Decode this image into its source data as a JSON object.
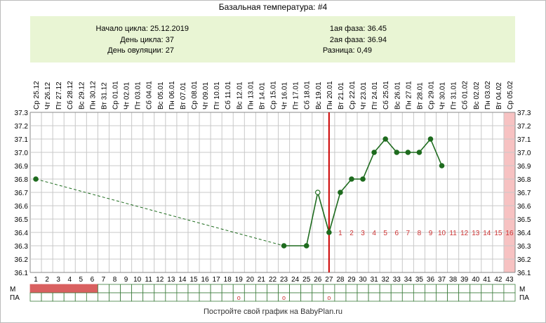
{
  "title": "Базальная температура: #4",
  "info": {
    "cycle_start": "Начало цикла: 25.12.2019",
    "cycle_day": "День цикла: 37",
    "ovulation_day": "День овуляции: 27",
    "phase1": "1ая фаза: 36.45",
    "phase2": "2ая фаза: 36.94",
    "difference": "Разница: 0,49"
  },
  "footer": "Постройте свой график на BabyPlan.ru",
  "colors": {
    "line": "#1e6b1e",
    "ovulation_line": "#cc0000",
    "menses_fill": "#d96060",
    "highlight_column": "#f7c2c2",
    "info_bg": "#e9f5d4",
    "phase_number": "#cc3333",
    "grid": "#c8c8c8"
  },
  "chart_data": {
    "type": "line",
    "title": "Базальная температура: #4",
    "ylim": [
      36.1,
      37.3
    ],
    "y_ticks": [
      "37.3",
      "37.2",
      "37.1",
      "37.0",
      "36.9",
      "36.8",
      "36.7",
      "36.6",
      "36.5",
      "36.4",
      "36.3",
      "36.2",
      "36.1"
    ],
    "dates": [
      "Ср 25.12",
      "Чт 26.12",
      "Пт 27.12",
      "Сб 28.12",
      "Вс 29.12",
      "Пн 30.12",
      "Вт 31.12",
      "Ср 01.01",
      "Чт 02.01",
      "Пт 03.01",
      "Сб 04.01",
      "Вс 05.01",
      "Пн 06.01",
      "Вт 07.01",
      "Ср 08.01",
      "Чт 09.01",
      "Пт 10.01",
      "Сб 11.01",
      "Вс 12.01",
      "Пн 13.01",
      "Вт 14.01",
      "Ср 15.01",
      "Чт 16.01",
      "Пт 17.01",
      "Сб 18.01",
      "Вс 19.01",
      "Пн 20.01",
      "Вт 21.01",
      "Ср 22.01",
      "Чт 23.01",
      "Пт 24.01",
      "Сб 25.01",
      "Вс 26.01",
      "Пн 27.01",
      "Вт 28.01",
      "Ср 29.01",
      "Чт 30.01",
      "Пт 31.01",
      "Сб 01.02",
      "Вс 02.02",
      "Пн 03.02",
      "Вт 04.02",
      "Ср 05.02"
    ],
    "days": [
      "1",
      "2",
      "3",
      "4",
      "5",
      "6",
      "7",
      "8",
      "9",
      "10",
      "11",
      "12",
      "13",
      "14",
      "15",
      "16",
      "17",
      "18",
      "19",
      "20",
      "21",
      "22",
      "23",
      "24",
      "25",
      "26",
      "27",
      "28",
      "29",
      "30",
      "31",
      "32",
      "33",
      "34",
      "35",
      "36",
      "37",
      "38",
      "39",
      "40",
      "41",
      "42",
      "43"
    ],
    "points": [
      {
        "day": 1,
        "temp": 36.8
      },
      {
        "day": 23,
        "temp": 36.3
      },
      {
        "day": 25,
        "temp": 36.3
      },
      {
        "day": 26,
        "temp": 36.7,
        "hollow": true
      },
      {
        "day": 27,
        "temp": 36.4
      },
      {
        "day": 28,
        "temp": 36.7
      },
      {
        "day": 29,
        "temp": 36.8
      },
      {
        "day": 30,
        "temp": 36.8
      },
      {
        "day": 31,
        "temp": 37.0
      },
      {
        "day": 32,
        "temp": 37.1
      },
      {
        "day": 33,
        "temp": 37.0
      },
      {
        "day": 34,
        "temp": 37.0
      },
      {
        "day": 35,
        "temp": 37.0
      },
      {
        "day": 36,
        "temp": 37.1
      },
      {
        "day": 37,
        "temp": 36.9
      }
    ],
    "dashed_segment_days": [
      1,
      23
    ],
    "ovulation_day": 27,
    "phase_numbers": [
      "1",
      "2",
      "3",
      "4",
      "5",
      "6",
      "7",
      "8",
      "9",
      "10",
      "11",
      "12",
      "13",
      "14",
      "15",
      "16"
    ],
    "phase_numbers_y": 36.4,
    "highlight_day": 43,
    "row_labels": {
      "m": "М",
      "pa": "ПА"
    },
    "menses_days": [
      1,
      2,
      3,
      4,
      5,
      6
    ],
    "pa_marks": [
      19,
      23,
      27
    ],
    "pa_mark_symbol": "o"
  }
}
